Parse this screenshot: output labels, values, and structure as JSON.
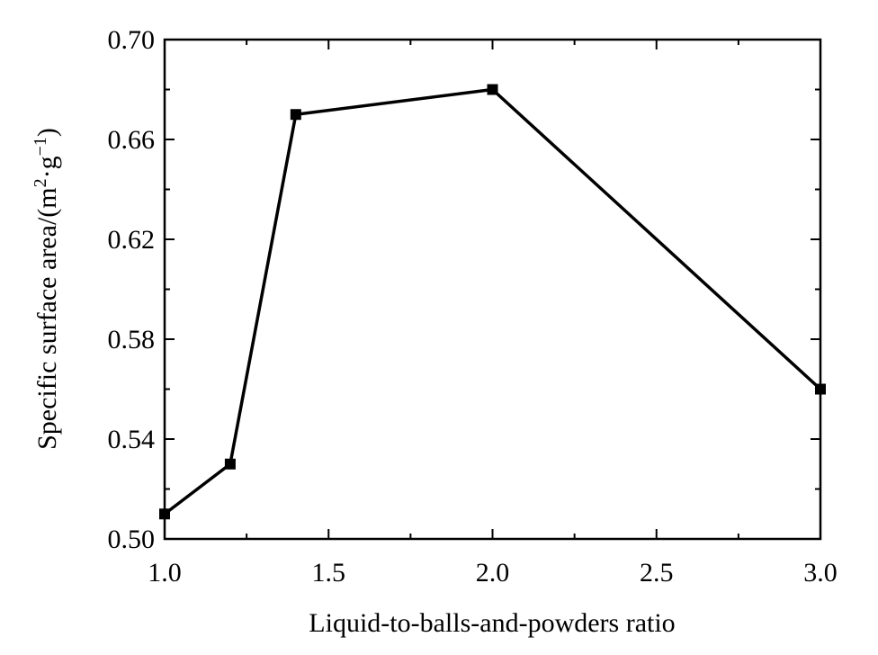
{
  "chart_data": {
    "type": "line",
    "title": "",
    "xlabel": "Liquid-to-balls-and-powders ratio",
    "ylabel": {
      "prefix": "Specific surface area/(m",
      "sup1": "2",
      "middle": "·g",
      "sup2": "−1",
      "suffix": ")"
    },
    "xlim": [
      1.0,
      3.0
    ],
    "ylim": [
      0.5,
      0.7
    ],
    "xticks": [
      1.0,
      1.5,
      2.0,
      2.5,
      3.0
    ],
    "xtick_labels": [
      "1.0",
      "1.5",
      "2.0",
      "2.5",
      "3.0"
    ],
    "yticks": [
      0.5,
      0.54,
      0.58,
      0.62,
      0.66,
      0.7
    ],
    "ytick_labels": [
      "0.50",
      "0.54",
      "0.58",
      "0.62",
      "0.66",
      "0.70"
    ],
    "grid": false,
    "series": [
      {
        "x": [
          1.0,
          1.2,
          1.4,
          2.0,
          3.0
        ],
        "y": [
          0.51,
          0.53,
          0.67,
          0.68,
          0.56
        ],
        "marker": "square",
        "color": "#000000"
      }
    ]
  }
}
